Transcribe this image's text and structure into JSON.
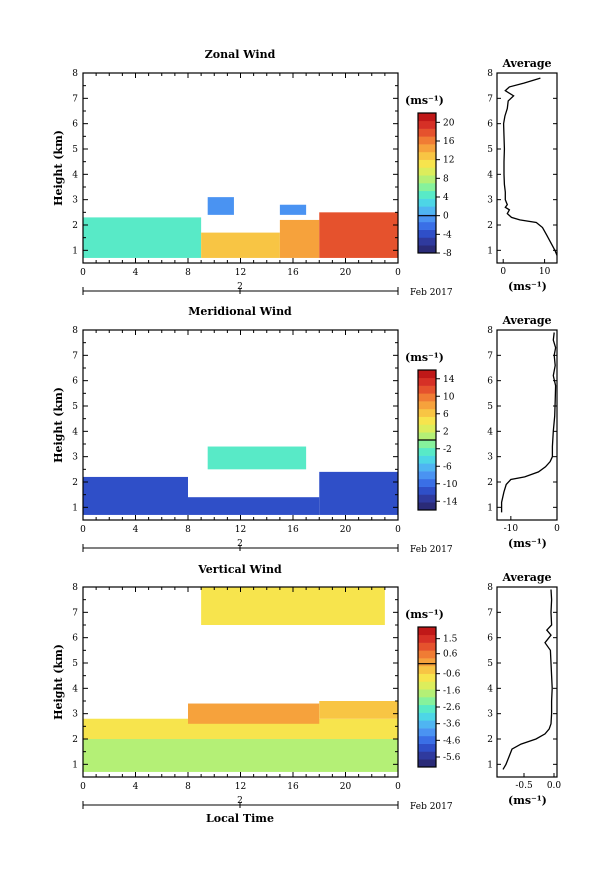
{
  "chart_data": [
    {
      "type": "heatmap",
      "title": "Zonal Wind",
      "xlabel": "",
      "ylabel": "Height (km)",
      "xlim": [
        0,
        24
      ],
      "ylim": [
        0.5,
        8
      ],
      "xticks": [
        "0",
        "4",
        "8",
        "12",
        "16",
        "20",
        "0"
      ],
      "yticks": [
        "1",
        "2",
        "3",
        "4",
        "5",
        "6",
        "7",
        "8"
      ],
      "date_label": "2",
      "month_label": "Feb 2017",
      "colorbar": {
        "unit": "(ms⁻¹)",
        "min": -8,
        "max": 22,
        "ticks": [
          "20",
          "16",
          "12",
          "8",
          "4",
          "0",
          "-4",
          "-8"
        ]
      },
      "fields": [
        {
          "x": [
            0,
            9
          ],
          "y": [
            0.7,
            2.3
          ],
          "value": 4
        },
        {
          "x": [
            9,
            15
          ],
          "y": [
            0.7,
            1.7
          ],
          "value": 12
        },
        {
          "x": [
            15,
            18
          ],
          "y": [
            0.7,
            2.2
          ],
          "value": 14
        },
        {
          "x": [
            18,
            24
          ],
          "y": [
            0.7,
            2.5
          ],
          "value": 18
        },
        {
          "x": [
            9.5,
            11.5
          ],
          "y": [
            2.4,
            3.1
          ],
          "value": 0
        },
        {
          "x": [
            15,
            17
          ],
          "y": [
            2.4,
            2.8
          ],
          "value": -1
        }
      ],
      "profile": {
        "title": "Average",
        "xlabel": "(ms⁻¹)",
        "xlim": [
          -1.5,
          13
        ],
        "xticks": [
          "0",
          "10"
        ],
        "height": [
          0.8,
          1.0,
          1.3,
          1.6,
          1.9,
          2.1,
          2.2,
          2.3,
          2.45,
          2.6,
          2.7,
          2.8,
          3.0,
          3.3,
          3.6,
          4.0,
          4.5,
          5.0,
          5.5,
          6.0,
          6.3,
          6.6,
          6.9,
          7.1,
          7.3,
          7.45,
          7.6,
          7.8
        ],
        "value": [
          13,
          12.5,
          11.5,
          10.5,
          9.5,
          8,
          4,
          2,
          1,
          1.5,
          0.5,
          1,
          0.5,
          0.5,
          0.3,
          0.2,
          0.2,
          0.3,
          0.2,
          0.1,
          0.4,
          1,
          1.2,
          2.5,
          0.5,
          1.5,
          5,
          9
        ]
      }
    },
    {
      "type": "heatmap",
      "title": "Meridional Wind",
      "xlabel": "",
      "ylabel": "Height (km)",
      "xlim": [
        0,
        24
      ],
      "ylim": [
        0.5,
        8
      ],
      "xticks": [
        "0",
        "4",
        "8",
        "12",
        "16",
        "20",
        "0"
      ],
      "yticks": [
        "1",
        "2",
        "3",
        "4",
        "5",
        "6",
        "7",
        "8"
      ],
      "date_label": "2",
      "month_label": "Feb 2017",
      "colorbar": {
        "unit": "(ms⁻¹)",
        "min": -16,
        "max": 16,
        "ticks": [
          "14",
          "10",
          "6",
          "2",
          "-2",
          "-6",
          "-10",
          "-14"
        ]
      },
      "fields": [
        {
          "x": [
            0,
            8
          ],
          "y": [
            0.7,
            2.2
          ],
          "value": -12
        },
        {
          "x": [
            8,
            18
          ],
          "y": [
            0.7,
            1.4
          ],
          "value": -11
        },
        {
          "x": [
            18,
            24
          ],
          "y": [
            0.7,
            2.4
          ],
          "value": -12
        },
        {
          "x": [
            9.5,
            17
          ],
          "y": [
            2.5,
            3.4
          ],
          "value": -3
        }
      ],
      "profile": {
        "title": "Average",
        "xlabel": "(ms⁻¹)",
        "xlim": [
          -13,
          0
        ],
        "xticks": [
          "-10",
          "0"
        ],
        "height": [
          0.8,
          1.2,
          1.6,
          1.9,
          2.1,
          2.2,
          2.4,
          2.6,
          2.8,
          3.0,
          3.4,
          4.0,
          4.6,
          5.2,
          5.8,
          6.2,
          6.6,
          7.0,
          7.3,
          7.6,
          7.9
        ],
        "value": [
          -12,
          -12,
          -11.5,
          -11,
          -10,
          -7,
          -4,
          -2.5,
          -1.5,
          -1,
          -1,
          -0.8,
          -0.5,
          -0.4,
          -0.3,
          -0.8,
          -0.4,
          -0.6,
          -0.3,
          -0.8,
          -0.6
        ]
      }
    },
    {
      "type": "heatmap",
      "title": "Vertical Wind",
      "xlabel": "Local Time",
      "ylabel": "Height (km)",
      "xlim": [
        0,
        24
      ],
      "ylim": [
        0.5,
        8
      ],
      "xticks": [
        "0",
        "4",
        "8",
        "12",
        "16",
        "20",
        "0"
      ],
      "yticks": [
        "1",
        "2",
        "3",
        "4",
        "5",
        "6",
        "7",
        "8"
      ],
      "date_label": "2",
      "month_label": "Feb 2017",
      "colorbar": {
        "unit": "(ms⁻¹)",
        "min": -6.2,
        "max": 2.2,
        "ticks": [
          "1.5",
          "0.6",
          "-0.6",
          "-1.6",
          "-2.6",
          "-3.6",
          "-4.6",
          "-5.6"
        ]
      },
      "fields": [
        {
          "x": [
            0,
            24
          ],
          "y": [
            0.7,
            2.0
          ],
          "value": -1.8
        },
        {
          "x": [
            0,
            24
          ],
          "y": [
            2.0,
            2.8
          ],
          "value": -0.8
        },
        {
          "x": [
            8,
            18
          ],
          "y": [
            2.6,
            3.4
          ],
          "value": 0.3
        },
        {
          "x": [
            18,
            24
          ],
          "y": [
            2.8,
            3.5
          ],
          "value": -0.4
        },
        {
          "x": [
            9,
            23
          ],
          "y": [
            6.5,
            8.0
          ],
          "value": -0.8
        }
      ],
      "profile": {
        "title": "Average",
        "xlabel": "(ms⁻¹)",
        "xlim": [
          -0.95,
          0.05
        ],
        "xticks": [
          "-0.5",
          "0.0"
        ],
        "height": [
          0.8,
          1.0,
          1.3,
          1.6,
          1.8,
          2.0,
          2.2,
          2.4,
          2.6,
          3.0,
          3.5,
          4.0,
          4.5,
          5.0,
          5.5,
          5.8,
          6.1,
          6.3,
          6.5,
          7.0,
          7.5,
          7.9
        ],
        "value": [
          -0.85,
          -0.8,
          -0.75,
          -0.7,
          -0.55,
          -0.3,
          -0.15,
          -0.08,
          -0.05,
          -0.04,
          -0.04,
          -0.03,
          -0.04,
          -0.05,
          -0.06,
          -0.15,
          -0.05,
          -0.12,
          -0.04,
          -0.05,
          -0.04,
          -0.05
        ]
      }
    }
  ],
  "colormap": [
    "#2a2b78",
    "#2f3a9e",
    "#2f4fc8",
    "#3a6fe6",
    "#4a93f2",
    "#4fb5f2",
    "#4dd6e6",
    "#58eac7",
    "#86f29c",
    "#b4f076",
    "#dced5c",
    "#f7e44d",
    "#f8c544",
    "#f6a23c",
    "#f07c34",
    "#e5522d",
    "#d63026",
    "#c01818"
  ]
}
